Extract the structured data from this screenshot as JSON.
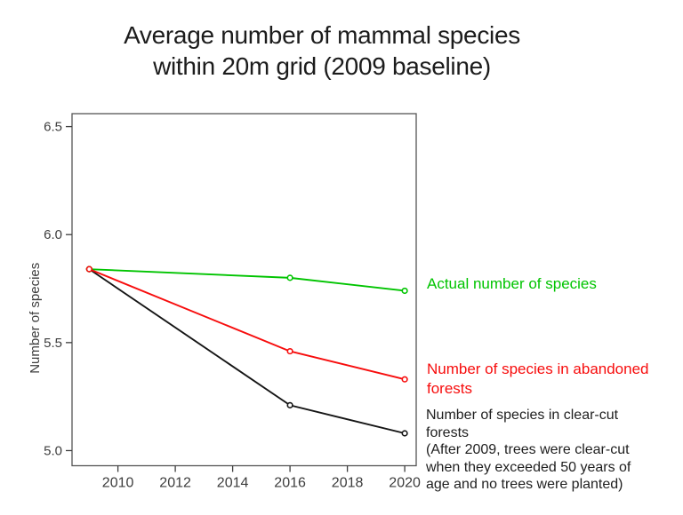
{
  "title": {
    "line1": "Average number of mammal species",
    "line2": "within 20m grid (2009 baseline)"
  },
  "chart_data": {
    "type": "line",
    "title": "Average number of mammal species within 20m grid (2009 baseline)",
    "xlabel": "",
    "ylabel": "Number of species",
    "x_ticks": [
      2010,
      2012,
      2014,
      2016,
      2018,
      2020
    ],
    "y_ticks": [
      5.0,
      5.5,
      6.0,
      6.5
    ],
    "xlim": [
      2008.4,
      2020.4
    ],
    "ylim": [
      4.93,
      6.56
    ],
    "x": [
      2009,
      2016,
      2020
    ],
    "series": [
      {
        "name": "Actual number of species",
        "color": "#00c400",
        "values": [
          5.84,
          5.8,
          5.74
        ]
      },
      {
        "name": "Number of species in abandoned forests",
        "color": "#f70d0d",
        "values": [
          5.84,
          5.46,
          5.33
        ]
      },
      {
        "name": "Number of species in clear-cut forests",
        "color": "#151515",
        "values": [
          5.84,
          5.21,
          5.08
        ]
      }
    ],
    "draw_order": [
      2,
      0,
      1
    ],
    "marker": "open-circle",
    "grid": false,
    "legend_position": "right-annotations"
  },
  "annotations": {
    "actual": {
      "text": "Actual number of species",
      "color": "#00c400"
    },
    "abandoned": {
      "text": "Number of species in abandoned\nforests",
      "color": "#f70d0d"
    },
    "clearcut": {
      "text": "Number of species in clear-cut\nforests\n(After 2009, trees were clear-cut\nwhen they exceeded 50 years of\nage and no trees were planted)",
      "color": "#1f1f1f"
    }
  },
  "axis": {
    "tick_color": "#3d3d3d",
    "box_color": "#555555"
  }
}
